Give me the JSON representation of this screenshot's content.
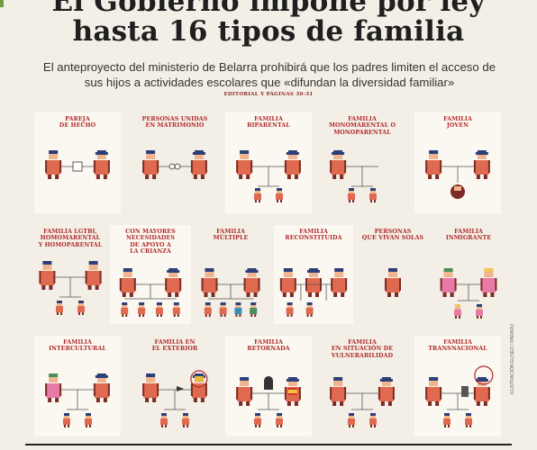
{
  "article": {
    "headline_line1": "El Gobierno impone por ley",
    "headline_line2": "hasta 16 tipos de familia",
    "subhead": "El anteproyecto del ministerio de Belarra prohibirá que los padres limiten el acceso de sus hijos a actividades escolares que «difundan la diversidad familiar»",
    "editorial": "EDITORIAL Y PÁGINAS 30-31",
    "credit": "ILUSTRACIÓN ELISEO / PARADO"
  },
  "families": [
    {
      "id": "pareja-de-hecho",
      "title": "PAREJA\nDE HECHO"
    },
    {
      "id": "unidas-matrimonio",
      "title": "PERSONAS UNIDAS\nEN MATRIMONIO"
    },
    {
      "id": "biparental",
      "title": "FAMILIA\nBIPARENTAL"
    },
    {
      "id": "monomarental",
      "title": "FAMILIA\nMONOMARENTAL O\nMONOPARENTAL"
    },
    {
      "id": "joven",
      "title": "FAMILIA\nJOVEN"
    },
    {
      "id": "lgtbi",
      "title": "FAMILIA LGTBI,\nHOMOMARENTAL\nY HOMOPARENTAL"
    },
    {
      "id": "mayores-necesidades",
      "title": "CON MAYORES\nNECESIDADES\nDE APOYO A\nLA CRIANZA"
    },
    {
      "id": "multiple",
      "title": "FAMILIA\nMÚLTIPLE"
    },
    {
      "id": "reconstituida",
      "title": "FAMILIA\nRECONSTITUIDA"
    },
    {
      "id": "viven-solas",
      "title": "PERSONAS\nQUE VIVAN SOLAS"
    },
    {
      "id": "inmigrante",
      "title": "FAMILIA\nINMIGRANTE"
    },
    {
      "id": "intercultural",
      "title": "FAMILIA\nINTERCULTURAL"
    },
    {
      "id": "exterior",
      "title": "FAMILIA EN\nEL EXTERIOR"
    },
    {
      "id": "retornada",
      "title": "FAMILIA\nRETORNADA"
    },
    {
      "id": "vulnerabilidad",
      "title": "FAMILIA\nEN SITUACIÓN DE\nVULNERABILIDAD"
    },
    {
      "id": "transnacional",
      "title": "FAMILIA\nTRANSNACIONAL"
    }
  ],
  "colors": {
    "background": "#f3efe6",
    "panel": "#fbf8f1",
    "title_red": "#b1282a",
    "figure_body": "#e06a4f",
    "figure_dark": "#7a2c25",
    "hair_blue": "#2d3f79",
    "pink": "#e87aa8",
    "green": "#4c8f5a",
    "yellow": "#f2c55a"
  }
}
